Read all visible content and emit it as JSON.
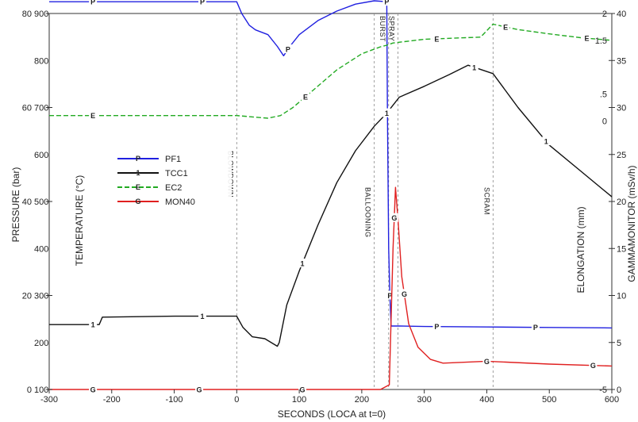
{
  "chart_data": {
    "type": "line",
    "title": "",
    "xlabel": "SECONDS (LOCA at t=0)",
    "xlim": [
      -300,
      600
    ],
    "x_ticks": [
      "-300",
      "-200",
      "-100",
      "0",
      "100",
      "200",
      "300",
      "400",
      "500",
      "600"
    ],
    "axes": {
      "pressure": {
        "label": "PRESSURE (bar)",
        "range": [
          0,
          80
        ],
        "ticks": [
          "0",
          "20",
          "40",
          "60",
          "80"
        ]
      },
      "temperature": {
        "label": "TEMPERATURE (°C)",
        "range": [
          100,
          900
        ],
        "ticks": [
          "100",
          "200",
          "300",
          "400",
          "500",
          "600",
          "700",
          "800",
          "900"
        ]
      },
      "elongation": {
        "label": "ELONGATION (mm)",
        "range": [
          -5,
          2
        ],
        "ticks": [
          "-5",
          "0",
          ".5",
          "1.5",
          "2"
        ]
      },
      "gammamonitor": {
        "label": "GAMMAMONITOR (mSv/h)",
        "range": [
          0,
          40
        ],
        "ticks": [
          "0",
          "5",
          "10",
          "15",
          "20",
          "25",
          "30",
          "35",
          "40"
        ]
      }
    },
    "events": [
      {
        "label": "BLOWDOWN",
        "x": 0
      },
      {
        "label": "BALLOONING",
        "x": 220
      },
      {
        "label": "BURST",
        "x": 243
      },
      {
        "label": "SPRAY",
        "x": 258
      },
      {
        "label": "SCRAM",
        "x": 410
      }
    ],
    "legend_position": "left",
    "series": [
      {
        "name": "PF1",
        "marker": "P",
        "color": "#2020e0",
        "dash": "",
        "x": [
          -310,
          -200,
          -100,
          0,
          8,
          20,
          30,
          50,
          65,
          75,
          85,
          100,
          130,
          160,
          190,
          220,
          240,
          241,
          243,
          245,
          247,
          260,
          300,
          400,
          500,
          600
        ],
        "y": [
          82.5,
          82.5,
          82.5,
          82.5,
          80,
          77.5,
          76.5,
          75.5,
          73,
          71,
          73,
          75.5,
          78.5,
          80.5,
          82,
          82.7,
          82.5,
          60,
          30,
          20,
          13.5,
          13.5,
          13.4,
          13.3,
          13.2,
          13.1
        ],
        "markers_x": [
          -230,
          -55,
          82,
          240,
          245,
          320,
          478
        ]
      },
      {
        "name": "TCC1",
        "marker": "1",
        "color": "#111111",
        "dash": "",
        "x": [
          -310,
          -220,
          -215,
          -100,
          0,
          10,
          25,
          45,
          65,
          68,
          80,
          100,
          130,
          160,
          190,
          220,
          240,
          260,
          300,
          340,
          370,
          410,
          450,
          500,
          550,
          600
        ],
        "y": [
          238,
          238,
          254,
          256,
          256,
          232,
          212,
          208,
          192,
          200,
          280,
          352,
          450,
          540,
          608,
          660,
          688,
          722,
          745,
          770,
          790,
          772,
          700,
          620,
          565,
          510
        ],
        "markers_x": [
          -230,
          -55,
          105,
          240,
          380,
          495
        ]
      },
      {
        "name": "EC2",
        "marker": "E",
        "color": "#22aa22",
        "dash": "6,3",
        "x": [
          -310,
          -200,
          -100,
          0,
          50,
          70,
          90,
          120,
          160,
          200,
          230,
          240,
          250,
          300,
          390,
          410,
          450,
          500,
          550,
          600
        ],
        "y": [
          0.1,
          0.1,
          0.1,
          0.1,
          0.05,
          0.1,
          0.25,
          0.55,
          0.95,
          1.25,
          1.38,
          1.41,
          1.45,
          1.52,
          1.56,
          1.8,
          1.7,
          1.62,
          1.55,
          1.5
        ],
        "markers_x": [
          -230,
          110,
          320,
          430,
          560
        ]
      },
      {
        "name": "MON40",
        "marker": "G",
        "color": "#e02020",
        "dash": "",
        "x": [
          -310,
          -100,
          0,
          100,
          200,
          230,
          244,
          250,
          254,
          258,
          264,
          275,
          290,
          310,
          330,
          400,
          500,
          600
        ],
        "y": [
          0,
          0,
          0,
          0,
          0,
          0,
          0.5,
          15,
          21.5,
          18,
          12,
          7,
          4.5,
          3.2,
          2.8,
          3.0,
          2.7,
          2.5
        ],
        "markers_x": [
          -230,
          -60,
          105,
          252,
          268,
          400,
          570
        ]
      }
    ]
  }
}
